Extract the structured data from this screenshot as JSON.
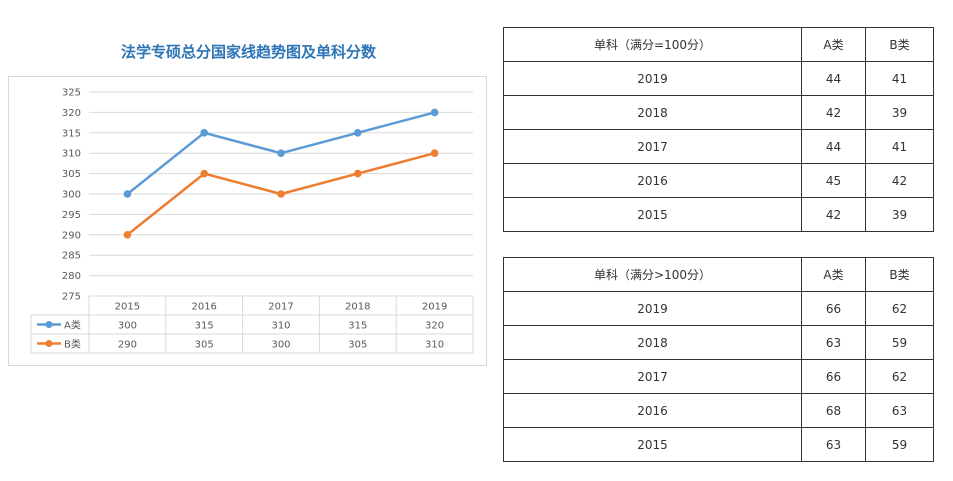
{
  "chart_data": {
    "type": "line",
    "title": "法学专硕总分国家线趋势图及单科分数",
    "categories": [
      "2015",
      "2016",
      "2017",
      "2018",
      "2019"
    ],
    "series": [
      {
        "name": "A类",
        "values": [
          300,
          315,
          310,
          315,
          320
        ],
        "color": "#5b9bd5"
      },
      {
        "name": "B类",
        "values": [
          290,
          305,
          300,
          305,
          310
        ],
        "color": "#ed7d31"
      }
    ],
    "ylim": [
      275,
      325
    ],
    "yticks": [
      "325",
      "320",
      "315",
      "310",
      "305",
      "300",
      "295",
      "290",
      "285",
      "280",
      "275"
    ],
    "grid": true,
    "legend": "data-table"
  },
  "table1": {
    "header": [
      "单科（满分=100分）",
      "A类",
      "B类"
    ],
    "rows": [
      [
        "2019",
        "44",
        "41"
      ],
      [
        "2018",
        "42",
        "39"
      ],
      [
        "2017",
        "44",
        "41"
      ],
      [
        "2016",
        "45",
        "42"
      ],
      [
        "2015",
        "42",
        "39"
      ]
    ]
  },
  "table2": {
    "header": [
      "单科（满分>100分）",
      "A类",
      "B类"
    ],
    "rows": [
      [
        "2019",
        "66",
        "62"
      ],
      [
        "2018",
        "63",
        "59"
      ],
      [
        "2017",
        "66",
        "62"
      ],
      [
        "2016",
        "68",
        "63"
      ],
      [
        "2015",
        "63",
        "59"
      ]
    ]
  }
}
